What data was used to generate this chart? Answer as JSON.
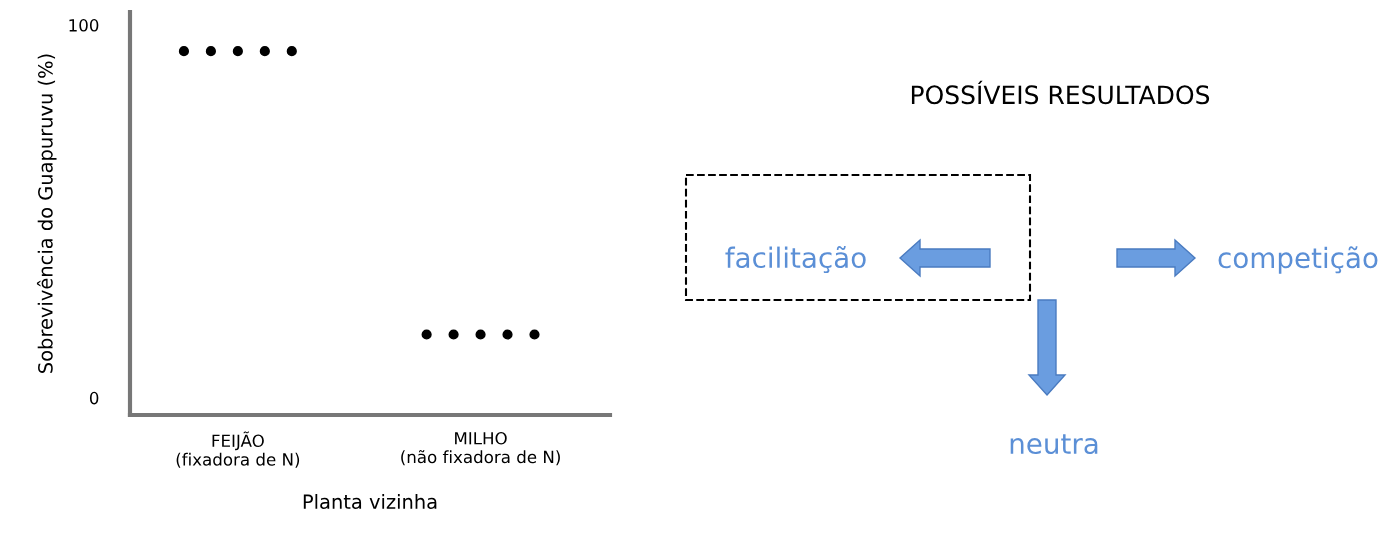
{
  "chart_data": {
    "type": "scatter",
    "xlabel": "Planta vizinha",
    "ylabel": "Sobrevivência do Guapuruvu (%)",
    "categories": [
      null,
      null,
      "FEIJÃO\n(fixadora de N)",
      null,
      null,
      null,
      null,
      null,
      null,
      null,
      null,
      "MILHO\n(não fixadora de N)",
      null,
      null,
      null
    ],
    "ylim": [
      -4.6,
      103.5
    ],
    "yticks": [
      0,
      100
    ],
    "series": [
      {
        "color": "#000000",
        "values": [
          93,
          93,
          93,
          93,
          93,
          null,
          null,
          null,
          null,
          17,
          17,
          17,
          17,
          17,
          null
        ]
      }
    ],
    "marker": "circle",
    "grid": false,
    "legend": false,
    "annotations": [
      "POSSÍVEIS RESULTADOS",
      "facilitação",
      "competição",
      "neutra"
    ]
  }
}
